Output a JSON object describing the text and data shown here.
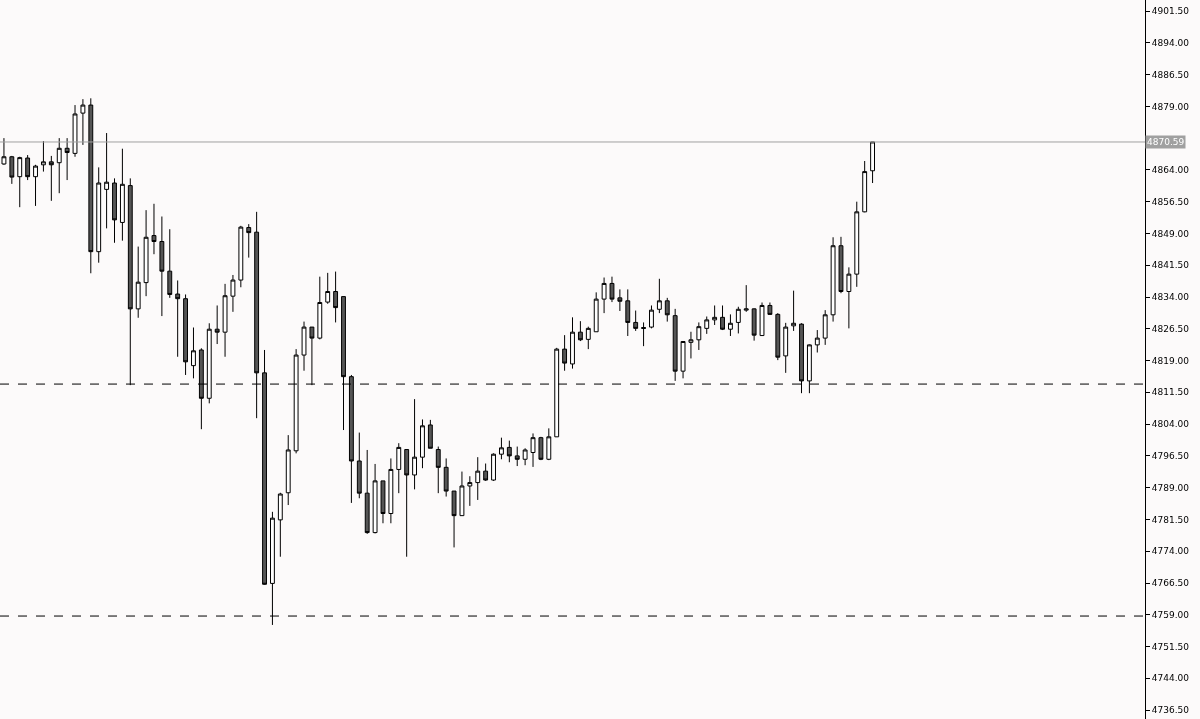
{
  "chart_data": {
    "type": "candlestick",
    "categories": [
      null,
      null,
      null,
      null,
      null,
      null,
      null,
      null,
      null,
      null,
      null,
      null,
      null,
      null,
      null,
      null,
      null,
      null,
      null,
      null,
      null,
      null,
      null,
      null,
      null,
      null,
      null,
      null,
      null,
      null,
      null,
      null,
      null,
      null,
      null,
      null,
      null,
      null,
      null,
      null,
      null,
      null,
      null,
      null,
      null,
      null,
      null,
      null,
      null,
      null,
      null,
      null,
      null,
      null,
      null,
      null,
      null,
      null,
      null,
      null,
      null,
      null,
      null,
      null,
      null,
      null,
      null,
      null,
      null,
      null,
      null,
      null,
      null,
      null,
      null,
      null,
      null,
      null,
      null,
      null,
      null,
      null,
      null,
      null,
      null,
      null,
      null,
      null,
      null,
      null,
      null,
      null,
      null,
      null,
      null,
      null,
      null,
      null,
      null,
      null,
      null,
      null,
      null,
      null,
      null,
      null,
      null,
      null,
      null,
      null,
      null,
      null,
      null,
      null,
      null,
      null,
      null,
      null,
      null,
      null,
      null,
      null,
      null,
      null,
      null,
      null,
      null,
      null,
      null,
      null,
      null,
      null,
      null,
      null,
      null,
      null,
      null,
      null,
      null,
      null,
      null,
      null,
      null,
      null,
      null
    ],
    "ohlc": [
      [
        4865.4,
        4871.5,
        4865.2,
        4867.1
      ],
      [
        4867.1,
        4867.3,
        4860.7,
        4862.3
      ],
      [
        4862.4,
        4867.1,
        4855.2,
        4866.9
      ],
      [
        4866.8,
        4867.5,
        4861.6,
        4862.4
      ],
      [
        4862.4,
        4865.2,
        4855.5,
        4864.9
      ],
      [
        4865.2,
        4870.8,
        4863.6,
        4865.9
      ],
      [
        4865.9,
        4867.3,
        4856.7,
        4865.2
      ],
      [
        4865.7,
        4871.5,
        4858.5,
        4869.1
      ],
      [
        4869.1,
        4871.5,
        4861.6,
        4868.1
      ],
      [
        4867.9,
        4879.3,
        4867.1,
        4877.2
      ],
      [
        4877.4,
        4880.7,
        4869.9,
        4879.3
      ],
      [
        4879.3,
        4880.9,
        4839.6,
        4844.7
      ],
      [
        4844.7,
        4864.6,
        4842.1,
        4860.9
      ],
      [
        4859.4,
        4872.7,
        4850.2,
        4861.1
      ],
      [
        4860.9,
        4862.0,
        4846.8,
        4852.2
      ],
      [
        4851.6,
        4869.0,
        4847.3,
        4860.6
      ],
      [
        4860.3,
        4862.0,
        4813.2,
        4831.2
      ],
      [
        4831.2,
        4845.9,
        4829.1,
        4837.5
      ],
      [
        4837.4,
        4854.5,
        4834.2,
        4848.1
      ],
      [
        4848.5,
        4856.0,
        4844.1,
        4847.1
      ],
      [
        4847.1,
        4853.0,
        4829.5,
        4840.1
      ],
      [
        4840.1,
        4850.0,
        4833.8,
        4834.6
      ],
      [
        4834.7,
        4837.9,
        4819.9,
        4833.6
      ],
      [
        4833.6,
        4834.6,
        4815.6,
        4818.7
      ],
      [
        4817.8,
        4826.8,
        4814.8,
        4821.3
      ],
      [
        4821.5,
        4821.9,
        4802.8,
        4810.1
      ],
      [
        4810.1,
        4827.8,
        4808.9,
        4826.4
      ],
      [
        4826.4,
        4832.0,
        4822.9,
        4825.7
      ],
      [
        4825.7,
        4837.1,
        4819.9,
        4834.3
      ],
      [
        4834.2,
        4839.2,
        4830.5,
        4838.0
      ],
      [
        4838.0,
        4850.8,
        4836.3,
        4850.5
      ],
      [
        4850.4,
        4851.2,
        4843.3,
        4849.2
      ],
      [
        4849.3,
        4854.1,
        4805.4,
        4816.1
      ],
      [
        4816.1,
        4821.5,
        4766.1,
        4766.2
      ],
      [
        4766.4,
        4783.3,
        4756.6,
        4781.8
      ],
      [
        4781.4,
        4787.8,
        4772.7,
        4787.5
      ],
      [
        4787.8,
        4801.4,
        4784.9,
        4797.9
      ],
      [
        4797.7,
        4821.7,
        4797.1,
        4820.3
      ],
      [
        4820.3,
        4828.2,
        4816.6,
        4826.9
      ],
      [
        4826.9,
        4826.9,
        4813.2,
        4824.3
      ],
      [
        4824.3,
        4838.8,
        4824.0,
        4832.7
      ],
      [
        4832.8,
        4839.7,
        4832.4,
        4835.3
      ],
      [
        4835.3,
        4840.0,
        4828.0,
        4831.5
      ],
      [
        4834.1,
        4834.1,
        4802.6,
        4815.2
      ],
      [
        4815.2,
        4815.6,
        4785.4,
        4795.3
      ],
      [
        4795.3,
        4802.0,
        4786.5,
        4787.7
      ],
      [
        4787.7,
        4797.9,
        4778.1,
        4778.4
      ],
      [
        4778.4,
        4794.6,
        4778.2,
        4790.6
      ],
      [
        4790.6,
        4790.6,
        4780.6,
        4782.9
      ],
      [
        4782.9,
        4795.9,
        4780.6,
        4793.3
      ],
      [
        4793.3,
        4799.5,
        4787.7,
        4798.5
      ],
      [
        4798.0,
        4798.0,
        4772.7,
        4792.0
      ],
      [
        4792.0,
        4809.9,
        4788.6,
        4796.2
      ],
      [
        4796.2,
        4805.1,
        4793.6,
        4803.6
      ],
      [
        4803.8,
        4805.0,
        4798.3,
        4798.3
      ],
      [
        4798.0,
        4798.7,
        4787.7,
        4793.8
      ],
      [
        4793.8,
        4795.9,
        4786.9,
        4788.2
      ],
      [
        4788.2,
        4788.2,
        4774.9,
        4782.4
      ],
      [
        4782.4,
        4792.8,
        4782.4,
        4789.4
      ],
      [
        4789.4,
        4791.7,
        4784.7,
        4790.2
      ],
      [
        4790.2,
        4796.2,
        4786.1,
        4792.9
      ],
      [
        4792.9,
        4794.7,
        4790.6,
        4790.8
      ],
      [
        4790.8,
        4797.1,
        4790.6,
        4796.9
      ],
      [
        4796.9,
        4800.8,
        4795.7,
        4798.4
      ],
      [
        4798.5,
        4800.1,
        4795.0,
        4796.5
      ],
      [
        4796.5,
        4798.7,
        4794.1,
        4795.7
      ],
      [
        4795.7,
        4798.3,
        4794.3,
        4797.9
      ],
      [
        4797.3,
        4801.8,
        4793.9,
        4800.8
      ],
      [
        4800.8,
        4801.0,
        4795.5,
        4795.7
      ],
      [
        4795.7,
        4803.0,
        4795.5,
        4801.0
      ],
      [
        4801.0,
        4822.0,
        4801.0,
        4821.7
      ],
      [
        4821.7,
        4825.0,
        4816.6,
        4818.4
      ],
      [
        4818.2,
        4829.2,
        4817.1,
        4825.7
      ],
      [
        4825.7,
        4828.3,
        4823.6,
        4823.9
      ],
      [
        4824.0,
        4827.0,
        4821.7,
        4826.6
      ],
      [
        4825.8,
        4835.1,
        4825.8,
        4833.5
      ],
      [
        4833.5,
        4838.6,
        4830.2,
        4837.2
      ],
      [
        4837.2,
        4838.8,
        4832.8,
        4833.5
      ],
      [
        4833.8,
        4835.8,
        4830.7,
        4833.0
      ],
      [
        4833.1,
        4835.8,
        4824.8,
        4828.0
      ],
      [
        4828.0,
        4830.8,
        4826.0,
        4826.6
      ],
      [
        4826.8,
        4828.0,
        4822.4,
        4826.6
      ],
      [
        4826.9,
        4832.0,
        4826.6,
        4830.9
      ],
      [
        4831.1,
        4838.3,
        4830.2,
        4833.1
      ],
      [
        4833.1,
        4833.8,
        4828.2,
        4829.8
      ],
      [
        4829.6,
        4831.2,
        4814.2,
        4816.5
      ],
      [
        4816.5,
        4823.6,
        4814.8,
        4823.5
      ],
      [
        4823.3,
        4825.8,
        4819.5,
        4823.9
      ],
      [
        4823.9,
        4828.0,
        4821.5,
        4827.0
      ],
      [
        4826.6,
        4829.4,
        4825.3,
        4828.6
      ],
      [
        4828.6,
        4832.0,
        4827.4,
        4829.2
      ],
      [
        4829.2,
        4832.0,
        4826.2,
        4826.4
      ],
      [
        4826.4,
        4829.9,
        4824.8,
        4827.8
      ],
      [
        4828.0,
        4831.7,
        4825.4,
        4831.1
      ],
      [
        4830.9,
        4836.8,
        4830.5,
        4831.2
      ],
      [
        4831.2,
        4831.3,
        4823.7,
        4825.0
      ],
      [
        4824.9,
        4832.7,
        4824.8,
        4832.0
      ],
      [
        4832.0,
        4832.7,
        4829.8,
        4829.9
      ],
      [
        4829.9,
        4830.2,
        4819.1,
        4819.8
      ],
      [
        4820.1,
        4827.9,
        4816.1,
        4826.9
      ],
      [
        4827.2,
        4835.5,
        4826.0,
        4827.8
      ],
      [
        4827.6,
        4827.8,
        4811.3,
        4814.2
      ],
      [
        4814.2,
        4822.8,
        4811.3,
        4822.7
      ],
      [
        4822.7,
        4826.2,
        4820.9,
        4824.3
      ],
      [
        4824.3,
        4830.9,
        4822.7,
        4829.8
      ],
      [
        4829.8,
        4848.1,
        4828.2,
        4846.1
      ],
      [
        4846.1,
        4848.2,
        4834.9,
        4835.3
      ],
      [
        4835.3,
        4841.0,
        4826.6,
        4839.4
      ],
      [
        4839.4,
        4856.5,
        4836.4,
        4854.1
      ],
      [
        4854.1,
        4866.1,
        4854.0,
        4863.6
      ],
      [
        4863.8,
        4870.6,
        4860.9,
        4870.6
      ],
      null,
      null,
      null,
      null,
      null,
      null,
      null,
      null,
      null,
      null,
      null,
      null,
      null,
      null,
      null,
      null,
      null,
      null,
      null,
      null,
      null,
      null,
      null,
      null,
      null,
      null,
      null,
      null,
      null,
      null,
      null,
      null,
      null,
      null
    ],
    "ylim": [
      4734.4,
      4904.1
    ],
    "yticks": [
      {
        "value": 4736.5,
        "label": "4736.50"
      },
      {
        "value": 4744,
        "label": "4744.00"
      },
      {
        "value": 4751.5,
        "label": "4751.50"
      },
      {
        "value": 4759,
        "label": "4759.00"
      },
      {
        "value": 4766.5,
        "label": "4766.50"
      },
      {
        "value": 4774,
        "label": "4774.00"
      },
      {
        "value": 4781.5,
        "label": "4781.50"
      },
      {
        "value": 4789,
        "label": "4789.00"
      },
      {
        "value": 4796.5,
        "label": "4796.50"
      },
      {
        "value": 4804,
        "label": "4804.00"
      },
      {
        "value": 4811.5,
        "label": "4811.50"
      },
      {
        "value": 4819,
        "label": "4819.00"
      },
      {
        "value": 4826.5,
        "label": "4826.50"
      },
      {
        "value": 4834,
        "label": "4834.00"
      },
      {
        "value": 4841.5,
        "label": "4841.50"
      },
      {
        "value": 4849,
        "label": "4849.00"
      },
      {
        "value": 4856.5,
        "label": "4856.50"
      },
      {
        "value": 4864,
        "label": "4864.00"
      },
      {
        "value": 4871.5,
        "label": null
      },
      {
        "value": 4879,
        "label": "4879.00"
      },
      {
        "value": 4886.5,
        "label": "4886.50"
      },
      {
        "value": 4894,
        "label": "4894.00"
      },
      {
        "value": 4901.5,
        "label": "4901.50"
      }
    ],
    "ref_lines": [
      {
        "axis": "y",
        "value": 4870.59,
        "label": "4870.59",
        "color": "#a0a0a0",
        "line_style": "solid"
      },
      {
        "axis": "y",
        "value": 4813.45,
        "color": "#000000",
        "line_style": "dashed"
      },
      {
        "axis": "y",
        "value": 4758.7,
        "color": "#000000",
        "line_style": "dashed"
      }
    ],
    "grid": false,
    "tick_labels": "y"
  }
}
